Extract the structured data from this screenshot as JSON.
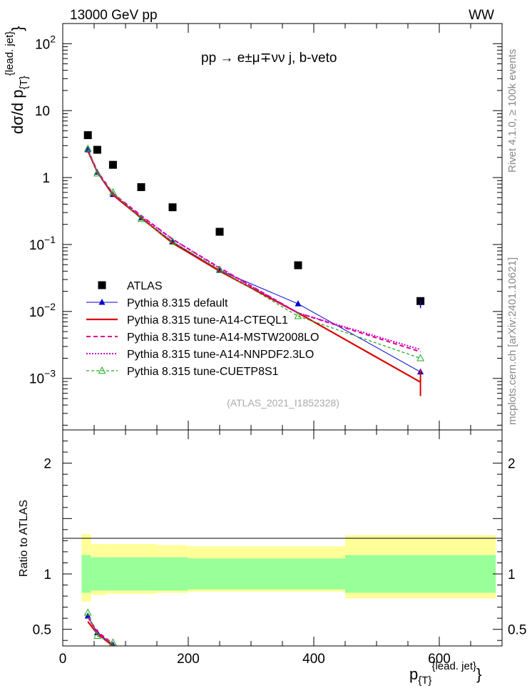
{
  "header": {
    "energy": "13000 GeV pp",
    "process": "WW"
  },
  "side_labels": {
    "rivet": "Rivet 4.1.0, ≥ 100k events",
    "mcplots": "mcplots.cern.ch [arXiv:2401.10621]"
  },
  "chart_data": [
    {
      "type": "line",
      "title": "pp → e±μ∓νν j, b-veto",
      "ylabel": "dσ/d p_{T}^{lead. jet}",
      "xlabel": "p_{T}^{lead. jet}",
      "yscale": "log",
      "ylim": [
        0.00017,
        200
      ],
      "xlim": [
        0,
        700
      ],
      "annotation": "(ATLAS_2021_I1852328)",
      "x": [
        40,
        55,
        80,
        125,
        175,
        250,
        375,
        570
      ],
      "x_edges": [
        [
          30,
          50
        ],
        [
          50,
          70
        ],
        [
          70,
          100
        ],
        [
          100,
          150
        ],
        [
          150,
          200
        ],
        [
          200,
          300
        ],
        [
          300,
          450
        ],
        [
          450,
          690
        ]
      ],
      "yticks": [
        {
          "value": 0.001,
          "base": "10",
          "exp": "−3"
        },
        {
          "value": 0.01,
          "base": "10",
          "exp": "−2"
        },
        {
          "value": 0.1,
          "base": "10",
          "exp": "−1"
        },
        {
          "value": 1,
          "base": "1",
          "exp": ""
        },
        {
          "value": 10,
          "base": "10",
          "exp": ""
        },
        {
          "value": 100,
          "base": "10",
          "exp": "2"
        }
      ],
      "series": [
        {
          "name": "ATLAS",
          "style": "data",
          "color": "#000000",
          "values": [
            4.3,
            2.6,
            1.55,
            0.72,
            0.36,
            0.155,
            0.049,
            0.0143
          ]
        },
        {
          "name": "Pythia 8.315 default",
          "style": "blue-triangle",
          "color": "#0000cc",
          "values": [
            2.6,
            1.2,
            0.56,
            0.25,
            0.11,
            0.041,
            0.013,
            0.00125
          ]
        },
        {
          "name": "Pythia 8.315 tune-A14-CTEQL1",
          "style": "red-solid",
          "color": "#dd0000",
          "values": [
            2.5,
            1.2,
            0.55,
            0.25,
            0.105,
            0.04,
            0.0095,
            0.00088
          ]
        },
        {
          "name": "Pythia 8.315 tune-A14-MSTW2008LO",
          "style": "magenta-dashed",
          "color": "#e0008a",
          "values": [
            2.6,
            1.25,
            0.58,
            0.27,
            0.12,
            0.045,
            0.0095,
            0.0025
          ]
        },
        {
          "name": "Pythia 8.315 tune-A14-NNPDF2.3LO",
          "style": "magenta-dotted",
          "color": "#cc00cc",
          "values": [
            2.6,
            1.2,
            0.57,
            0.26,
            0.12,
            0.044,
            0.0095,
            0.0027
          ]
        },
        {
          "name": "Pythia 8.315 tune-CUETP8S1",
          "style": "green-dashed",
          "color": "#22aa22",
          "values": [
            2.7,
            1.15,
            0.6,
            0.24,
            0.11,
            0.042,
            0.0085,
            0.002
          ]
        }
      ]
    },
    {
      "type": "line",
      "ylabel": "Ratio to ATLAS",
      "ylim": [
        0.35,
        2.3
      ],
      "yticks": [
        "0.5",
        "1",
        "2"
      ],
      "xticks": [
        "0",
        "200",
        "400",
        "600"
      ],
      "band_edges": [
        30,
        45,
        70,
        100,
        150,
        200,
        300,
        450,
        690
      ],
      "band_inner": [
        [
          0.83,
          1.17
        ],
        [
          0.85,
          1.15
        ],
        [
          0.85,
          1.15
        ],
        [
          0.85,
          1.15
        ],
        [
          0.85,
          1.15
        ],
        [
          0.86,
          1.14
        ],
        [
          0.86,
          1.14
        ],
        [
          0.83,
          1.17
        ]
      ],
      "band_outer": [
        [
          0.75,
          1.36
        ],
        [
          0.81,
          1.27
        ],
        [
          0.82,
          1.27
        ],
        [
          0.82,
          1.27
        ],
        [
          0.83,
          1.26
        ],
        [
          0.84,
          1.25
        ],
        [
          0.84,
          1.25
        ],
        [
          0.78,
          1.35
        ]
      ],
      "ratio_series": [
        {
          "name": "Pythia 8.315 default",
          "values": [
            0.62,
            0.47,
            0.36
          ]
        },
        {
          "name": "Pythia 8.315 tune-A14-CTEQL1",
          "values": [
            0.57,
            0.46,
            0.35
          ]
        },
        {
          "name": "Pythia 8.315 tune-A14-MSTW2008LO",
          "values": [
            0.61,
            0.48,
            0.37
          ]
        },
        {
          "name": "Pythia 8.315 tune-A14-NNPDF2.3LO",
          "values": [
            0.61,
            0.47,
            0.36
          ]
        },
        {
          "name": "Pythia 8.315 tune-CUETP8S1",
          "values": [
            0.65,
            0.44,
            0.38
          ]
        }
      ]
    }
  ]
}
